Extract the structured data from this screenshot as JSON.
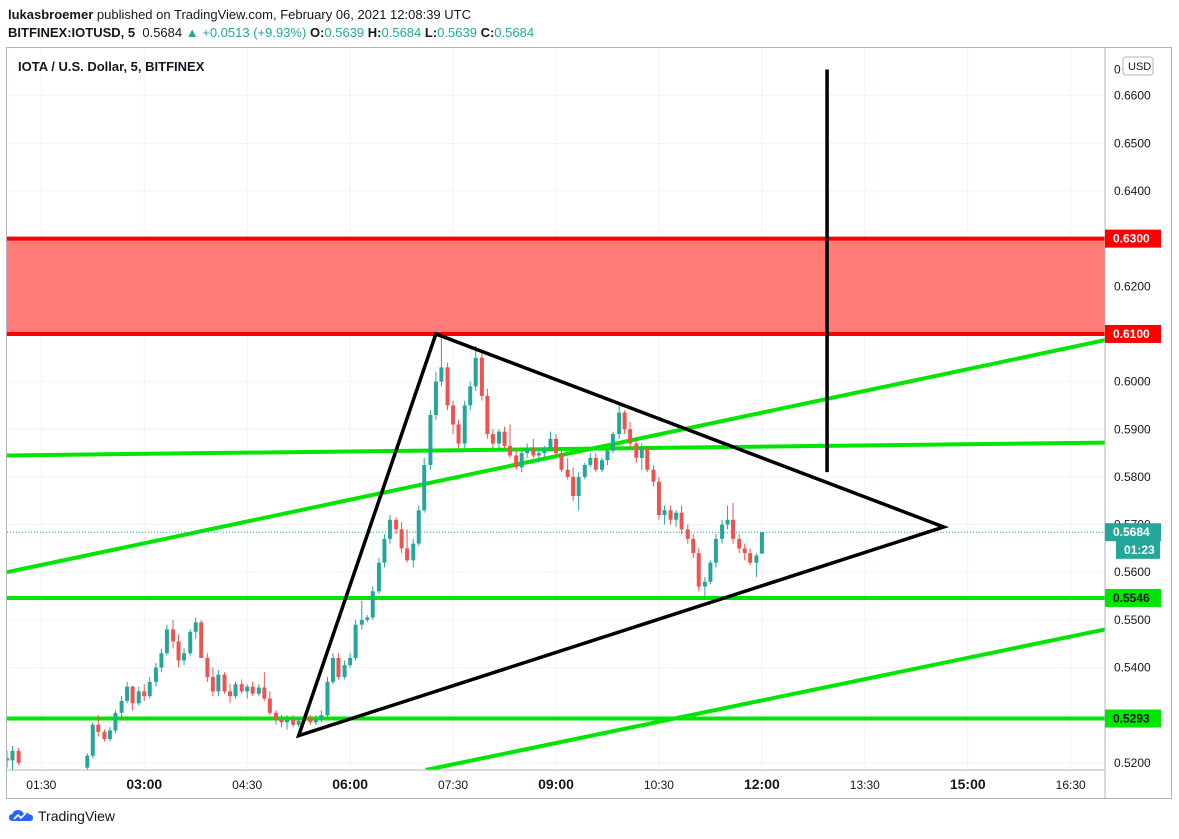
{
  "header": {
    "publisher": "lukasbroemer",
    "published_text": " published on TradingView.com, February 06, 2021 12:08:39 UTC",
    "symbol_line": "BITFINEX:IOTUSD, 5",
    "last_price": "0.5684",
    "change": "▲ +0.0513 (+9.93%)",
    "o_label": "O:",
    "o": "0.5639",
    "h_label": "H:",
    "h": "0.5684",
    "l_label": "L:",
    "l": "0.5639",
    "c_label": "C:",
    "c": "0.5684"
  },
  "chart_title": "IOTA / U.S. Dollar, 5, BITFINEX",
  "footer": {
    "brand": "TradingView",
    "logo_icon": "tradingview-logo-icon"
  },
  "colors": {
    "up": "#26a69a",
    "down": "#ef5350",
    "level": "#00e600",
    "zone": "#ff0000",
    "zone_fill": "#ff7c78"
  },
  "chart_data": {
    "type": "candlestick",
    "currency_badge": "USD",
    "y_range": [
      0.5185,
      0.67
    ],
    "y_ticks": [
      "0.6600",
      "0.6500",
      "0.6400",
      "0.6300",
      "0.6200",
      "0.6100",
      "0.6000",
      "0.5900",
      "0.5800",
      "0.5700",
      "0.5600",
      "0.5500",
      "0.5400",
      "0.5300",
      "0.5200"
    ],
    "top_tick_partial": "0",
    "x_range": [
      "01:00",
      "17:00"
    ],
    "x_ticks": [
      {
        "label": "01:30",
        "t": 1.5,
        "bold": false
      },
      {
        "label": "03:00",
        "t": 3.0,
        "bold": true
      },
      {
        "label": "04:30",
        "t": 4.5,
        "bold": false
      },
      {
        "label": "06:00",
        "t": 6.0,
        "bold": true
      },
      {
        "label": "07:30",
        "t": 7.5,
        "bold": false
      },
      {
        "label": "09:00",
        "t": 9.0,
        "bold": true
      },
      {
        "label": "10:30",
        "t": 10.5,
        "bold": false
      },
      {
        "label": "12:00",
        "t": 12.0,
        "bold": true
      },
      {
        "label": "13:30",
        "t": 13.5,
        "bold": false
      },
      {
        "label": "15:00",
        "t": 15.0,
        "bold": true
      },
      {
        "label": "16:30",
        "t": 16.5,
        "bold": false
      }
    ],
    "price_labels": [
      {
        "text": "0.6300",
        "value": 0.63,
        "style": "red"
      },
      {
        "text": "0.6100",
        "value": 0.61,
        "style": "red"
      },
      {
        "text": "0.5684",
        "value": 0.5684,
        "style": "teal"
      },
      {
        "text": "01:23",
        "value": 0.5647,
        "style": "teal"
      },
      {
        "text": "0.5546",
        "value": 0.5546,
        "style": "green"
      },
      {
        "text": "0.5293",
        "value": 0.5293,
        "style": "green"
      }
    ],
    "resistance_zone": [
      0.61,
      0.63
    ],
    "horizontal_levels": [
      0.5546,
      0.5293
    ],
    "trend_lines": [
      {
        "name": "channel-upper",
        "from": [
          1.0,
          0.56
        ],
        "to": [
          17.0,
          0.6087
        ]
      },
      {
        "name": "channel-lower",
        "from": [
          7.1,
          0.5185
        ],
        "to": [
          17.0,
          0.548
        ]
      },
      {
        "name": "near-flat-line",
        "from": [
          1.0,
          0.5845
        ],
        "to": [
          17.0,
          0.5872
        ]
      }
    ],
    "triangle": [
      [
        7.25,
        0.61
      ],
      [
        14.65,
        0.5695
      ],
      [
        5.25,
        0.5257
      ]
    ],
    "vertical_projection": {
      "t": 12.95,
      "from": 0.6655,
      "to": 0.581
    },
    "current_price": 0.5684,
    "candles": [
      [
        1.0,
        0.521,
        0.5225,
        0.519,
        0.5205
      ],
      [
        1.08,
        0.5205,
        0.5235,
        0.5185,
        0.5225
      ],
      [
        1.17,
        0.5225,
        0.5232,
        0.5195,
        0.52
      ],
      [
        2.17,
        0.519,
        0.522,
        0.5185,
        0.5215
      ],
      [
        2.25,
        0.5215,
        0.5285,
        0.521,
        0.528
      ],
      [
        2.33,
        0.528,
        0.53,
        0.5255,
        0.5265
      ],
      [
        2.42,
        0.5265,
        0.527,
        0.5245,
        0.525
      ],
      [
        2.5,
        0.525,
        0.5275,
        0.5245,
        0.5268
      ],
      [
        2.58,
        0.5268,
        0.531,
        0.5262,
        0.5305
      ],
      [
        2.67,
        0.5305,
        0.534,
        0.529,
        0.533
      ],
      [
        2.75,
        0.533,
        0.537,
        0.5325,
        0.536
      ],
      [
        2.83,
        0.536,
        0.5362,
        0.531,
        0.5325
      ],
      [
        2.92,
        0.5325,
        0.536,
        0.532,
        0.535
      ],
      [
        3.0,
        0.535,
        0.5365,
        0.533,
        0.534
      ],
      [
        3.08,
        0.534,
        0.538,
        0.5335,
        0.537
      ],
      [
        3.17,
        0.537,
        0.541,
        0.536,
        0.54
      ],
      [
        3.25,
        0.54,
        0.544,
        0.539,
        0.543
      ],
      [
        3.33,
        0.543,
        0.549,
        0.5425,
        0.548
      ],
      [
        3.42,
        0.548,
        0.55,
        0.544,
        0.5455
      ],
      [
        3.5,
        0.5455,
        0.547,
        0.54,
        0.5415
      ],
      [
        3.58,
        0.5415,
        0.544,
        0.5405,
        0.543
      ],
      [
        3.67,
        0.543,
        0.548,
        0.5425,
        0.5475
      ],
      [
        3.75,
        0.5475,
        0.5505,
        0.546,
        0.5495
      ],
      [
        3.83,
        0.5495,
        0.55,
        0.542,
        0.542
      ],
      [
        3.92,
        0.542,
        0.543,
        0.537,
        0.538
      ],
      [
        4.0,
        0.538,
        0.54,
        0.534,
        0.535
      ],
      [
        4.08,
        0.535,
        0.5395,
        0.534,
        0.5385
      ],
      [
        4.17,
        0.5385,
        0.539,
        0.5345,
        0.535
      ],
      [
        4.25,
        0.535,
        0.5365,
        0.5325,
        0.534
      ],
      [
        4.33,
        0.534,
        0.537,
        0.5335,
        0.5365
      ],
      [
        4.42,
        0.5365,
        0.5375,
        0.5345,
        0.535
      ],
      [
        4.5,
        0.535,
        0.5365,
        0.5335,
        0.536
      ],
      [
        4.58,
        0.536,
        0.537,
        0.534,
        0.5345
      ],
      [
        4.67,
        0.5345,
        0.5365,
        0.534,
        0.5358
      ],
      [
        4.75,
        0.5358,
        0.539,
        0.533,
        0.5335
      ],
      [
        4.83,
        0.5335,
        0.535,
        0.53,
        0.5305
      ],
      [
        4.92,
        0.5305,
        0.531,
        0.528,
        0.529
      ],
      [
        5.0,
        0.529,
        0.53,
        0.5275,
        0.5285
      ],
      [
        5.08,
        0.5285,
        0.53,
        0.527,
        0.529
      ],
      [
        5.17,
        0.529,
        0.53,
        0.5275,
        0.528
      ],
      [
        5.25,
        0.528,
        0.5295,
        0.5275,
        0.5288
      ],
      [
        5.33,
        0.5288,
        0.53,
        0.5282,
        0.5295
      ],
      [
        5.42,
        0.5295,
        0.53,
        0.528,
        0.5285
      ],
      [
        5.5,
        0.5285,
        0.53,
        0.528,
        0.5292
      ],
      [
        5.58,
        0.5292,
        0.531,
        0.5285,
        0.53
      ],
      [
        5.67,
        0.53,
        0.538,
        0.5295,
        0.537
      ],
      [
        5.75,
        0.537,
        0.543,
        0.5365,
        0.542
      ],
      [
        5.83,
        0.542,
        0.543,
        0.5375,
        0.538
      ],
      [
        5.92,
        0.538,
        0.5415,
        0.5375,
        0.5405
      ],
      [
        6.0,
        0.5405,
        0.543,
        0.54,
        0.542
      ],
      [
        6.08,
        0.542,
        0.55,
        0.5415,
        0.549
      ],
      [
        6.17,
        0.549,
        0.554,
        0.548,
        0.55
      ],
      [
        6.25,
        0.55,
        0.551,
        0.5495,
        0.5505
      ],
      [
        6.33,
        0.5505,
        0.557,
        0.55,
        0.556
      ],
      [
        6.42,
        0.556,
        0.563,
        0.5555,
        0.562
      ],
      [
        6.5,
        0.562,
        0.568,
        0.561,
        0.567
      ],
      [
        6.58,
        0.567,
        0.572,
        0.566,
        0.571
      ],
      [
        6.67,
        0.571,
        0.5715,
        0.568,
        0.569
      ],
      [
        6.75,
        0.569,
        0.5705,
        0.564,
        0.565
      ],
      [
        6.83,
        0.565,
        0.569,
        0.562,
        0.5625
      ],
      [
        6.92,
        0.5625,
        0.567,
        0.561,
        0.566
      ],
      [
        7.0,
        0.566,
        0.574,
        0.5655,
        0.573
      ],
      [
        7.08,
        0.573,
        0.584,
        0.5725,
        0.5825
      ],
      [
        7.17,
        0.5825,
        0.594,
        0.5815,
        0.593
      ],
      [
        7.25,
        0.593,
        0.602,
        0.592,
        0.6
      ],
      [
        7.33,
        0.6,
        0.609,
        0.599,
        0.603
      ],
      [
        7.42,
        0.603,
        0.604,
        0.594,
        0.595
      ],
      [
        7.5,
        0.595,
        0.596,
        0.589,
        0.591
      ],
      [
        7.58,
        0.591,
        0.592,
        0.586,
        0.587
      ],
      [
        7.67,
        0.587,
        0.596,
        0.586,
        0.595
      ],
      [
        7.75,
        0.595,
        0.6,
        0.594,
        0.599
      ],
      [
        7.83,
        0.599,
        0.6075,
        0.598,
        0.605
      ],
      [
        7.92,
        0.605,
        0.606,
        0.596,
        0.597
      ],
      [
        8.0,
        0.597,
        0.5985,
        0.588,
        0.589
      ],
      [
        8.08,
        0.589,
        0.59,
        0.586,
        0.587
      ],
      [
        8.17,
        0.587,
        0.59,
        0.586,
        0.5895
      ],
      [
        8.25,
        0.5895,
        0.5905,
        0.586,
        0.5865
      ],
      [
        8.33,
        0.5865,
        0.591,
        0.584,
        0.5845
      ],
      [
        8.42,
        0.5845,
        0.586,
        0.5815,
        0.582
      ],
      [
        8.5,
        0.582,
        0.586,
        0.581,
        0.585
      ],
      [
        8.58,
        0.585,
        0.587,
        0.584,
        0.586
      ],
      [
        8.67,
        0.586,
        0.588,
        0.584,
        0.5845
      ],
      [
        8.75,
        0.5845,
        0.586,
        0.583,
        0.585
      ],
      [
        8.83,
        0.585,
        0.5865,
        0.584,
        0.586
      ],
      [
        8.92,
        0.586,
        0.5895,
        0.5855,
        0.588
      ],
      [
        9.0,
        0.588,
        0.589,
        0.5845,
        0.585
      ],
      [
        9.08,
        0.585,
        0.586,
        0.581,
        0.5815
      ],
      [
        9.17,
        0.5815,
        0.584,
        0.5795,
        0.58
      ],
      [
        9.25,
        0.58,
        0.582,
        0.575,
        0.576
      ],
      [
        9.33,
        0.576,
        0.581,
        0.573,
        0.58
      ],
      [
        9.42,
        0.58,
        0.583,
        0.5795,
        0.5825
      ],
      [
        9.5,
        0.5825,
        0.585,
        0.582,
        0.584
      ],
      [
        9.58,
        0.584,
        0.585,
        0.581,
        0.5815
      ],
      [
        9.67,
        0.5815,
        0.584,
        0.581,
        0.5835
      ],
      [
        9.75,
        0.5835,
        0.586,
        0.5825,
        0.5855
      ],
      [
        9.83,
        0.5855,
        0.5895,
        0.585,
        0.589
      ],
      [
        9.92,
        0.589,
        0.595,
        0.588,
        0.5935
      ],
      [
        10.0,
        0.5935,
        0.594,
        0.589,
        0.59
      ],
      [
        10.08,
        0.59,
        0.5915,
        0.586,
        0.587
      ],
      [
        10.17,
        0.587,
        0.588,
        0.583,
        0.584
      ],
      [
        10.25,
        0.584,
        0.587,
        0.5815,
        0.586
      ],
      [
        10.33,
        0.586,
        0.5865,
        0.581,
        0.5815
      ],
      [
        10.42,
        0.5815,
        0.5825,
        0.578,
        0.579
      ],
      [
        10.5,
        0.579,
        0.58,
        0.571,
        0.572
      ],
      [
        10.58,
        0.572,
        0.574,
        0.57,
        0.573
      ],
      [
        10.67,
        0.573,
        0.574,
        0.57,
        0.571
      ],
      [
        10.75,
        0.571,
        0.573,
        0.5695,
        0.5725
      ],
      [
        10.83,
        0.5725,
        0.574,
        0.568,
        0.569
      ],
      [
        10.92,
        0.569,
        0.57,
        0.566,
        0.567
      ],
      [
        11.0,
        0.567,
        0.568,
        0.563,
        0.564
      ],
      [
        11.08,
        0.564,
        0.565,
        0.556,
        0.557
      ],
      [
        11.17,
        0.557,
        0.559,
        0.5548,
        0.558
      ],
      [
        11.25,
        0.558,
        0.5625,
        0.5575,
        0.562
      ],
      [
        11.33,
        0.562,
        0.568,
        0.561,
        0.567
      ],
      [
        11.42,
        0.567,
        0.571,
        0.566,
        0.57
      ],
      [
        11.5,
        0.57,
        0.574,
        0.569,
        0.571
      ],
      [
        11.58,
        0.571,
        0.5745,
        0.566,
        0.567
      ],
      [
        11.67,
        0.567,
        0.568,
        0.564,
        0.565
      ],
      [
        11.75,
        0.565,
        0.566,
        0.5625,
        0.564
      ],
      [
        11.83,
        0.564,
        0.565,
        0.5615,
        0.562
      ],
      [
        11.92,
        0.562,
        0.564,
        0.559,
        0.5635
      ],
      [
        12.0,
        0.5639,
        0.5684,
        0.5639,
        0.5684
      ]
    ]
  }
}
